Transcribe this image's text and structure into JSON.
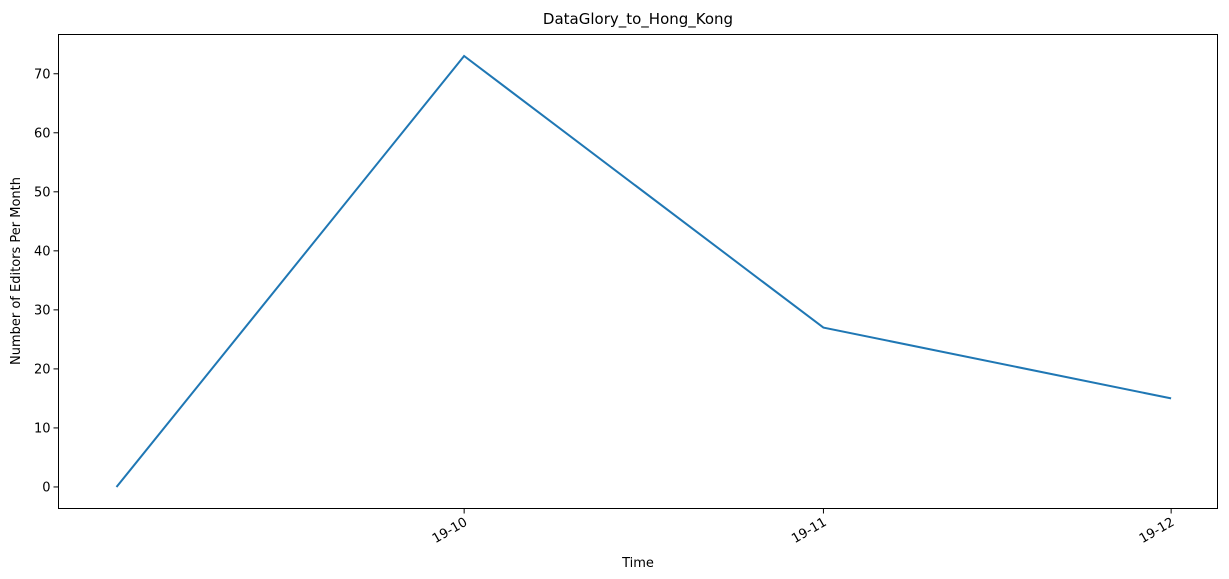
{
  "chart_data": {
    "type": "line",
    "title": "DataGlory_to_Hong_Kong",
    "xlabel": "Time",
    "ylabel": "Number of Editors Per Month",
    "x": [
      "2019-09-01",
      "2019-10-01",
      "2019-11-01",
      "2019-12-01"
    ],
    "series": [
      {
        "values": [
          0,
          73,
          27,
          15
        ],
        "color": "#1f77b4"
      }
    ],
    "xticks": [
      {
        "date": "2019-10-01",
        "label": "19-10"
      },
      {
        "date": "2019-11-01",
        "label": "19-11"
      },
      {
        "date": "2019-12-01",
        "label": "19-12"
      }
    ],
    "yticks": [
      0,
      10,
      20,
      30,
      40,
      50,
      60,
      70
    ],
    "ylim": [
      -3.65,
      76.65
    ],
    "xlim": [
      "2019-08-27",
      "2019-12-05"
    ],
    "grid": false,
    "legend": "none"
  }
}
